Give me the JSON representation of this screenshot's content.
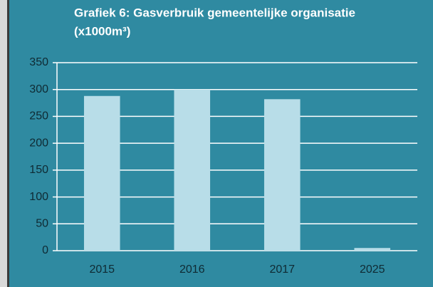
{
  "chart_data": {
    "type": "bar",
    "title": "Grafiek 6: Gasverbruik gemeentelijke organisatie",
    "subtitle": "(x1000m³)",
    "categories": [
      "2015",
      "2016",
      "2017",
      "2025"
    ],
    "values": [
      288,
      300,
      282,
      5
    ],
    "color": "#b8dde8",
    "ylim": [
      0,
      350
    ],
    "yticks": [
      0,
      50,
      100,
      150,
      200,
      250,
      300,
      350
    ],
    "grid": true
  }
}
